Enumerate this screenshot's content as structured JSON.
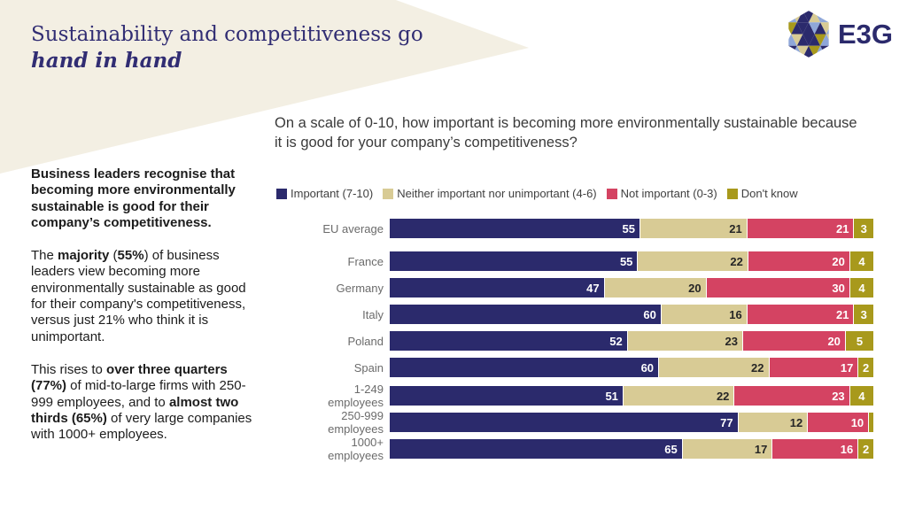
{
  "header": {
    "title_line1": "Sustainability and competitiveness go",
    "title_line2": "hand in hand",
    "logo_text": "E3G",
    "banner_color": "#f3efe3",
    "title_color": "#312d73"
  },
  "sidebar": {
    "paragraphs": [
      {
        "runs": [
          {
            "text": "Business leaders recognise that becoming more environmentally sustainable is good for their company’s competitiveness.",
            "bold": true
          }
        ]
      },
      {
        "runs": [
          {
            "text": "The ",
            "bold": false
          },
          {
            "text": "majority",
            "bold": true
          },
          {
            "text": " (",
            "bold": false
          },
          {
            "text": "55%",
            "bold": true
          },
          {
            "text": ") of business leaders view becoming more environmentally sustainable as good for their company's competitiveness, versus just 21% who think it is unimportant.",
            "bold": false
          }
        ]
      },
      {
        "runs": [
          {
            "text": "This rises to ",
            "bold": false
          },
          {
            "text": "over three quarters (77%)",
            "bold": true
          },
          {
            "text": " of mid-to-large firms with 250-999 employees, and to ",
            "bold": false
          },
          {
            "text": "almost two thirds (65%)",
            "bold": true
          },
          {
            "text": " of very large companies with 1000+ employees.",
            "bold": false
          }
        ]
      }
    ]
  },
  "chart": {
    "question": "On a scale of 0-10, how important is becoming more environmentally sustainable because it is good for your company’s competitiveness?"
  },
  "chart_data": {
    "type": "bar",
    "variant": "horizontal_stacked",
    "title": "On a scale of 0-10, how important is becoming more environmentally sustainable because it is good for your company’s competitiveness?",
    "categories": [
      "EU average",
      "France",
      "Germany",
      "Italy",
      "Poland",
      "Spain",
      "1-249 employees",
      "250-999 employees",
      "1000+ employees"
    ],
    "series": [
      {
        "name": "Important (7-10)",
        "color": "#2b2a6c",
        "label_color": "#ffffff",
        "values": [
          55,
          55,
          47,
          60,
          52,
          60,
          51,
          77,
          65
        ]
      },
      {
        "name": "Neither important nor unimportant (4-6)",
        "color": "#d8cb95",
        "label_color": "#262626",
        "values": [
          21,
          22,
          20,
          16,
          23,
          22,
          22,
          12,
          17
        ]
      },
      {
        "name": "Not important (0-3)",
        "color": "#d44362",
        "label_color": "#ffffff",
        "values": [
          21,
          20,
          30,
          21,
          20,
          17,
          23,
          10,
          16
        ]
      },
      {
        "name": "Don't know",
        "color": "#a8991c",
        "label_color": "#ffffff",
        "values": [
          3,
          4,
          4,
          3,
          5,
          2,
          4,
          1,
          2
        ]
      }
    ],
    "xlim": [
      0,
      100
    ],
    "grid": false,
    "legend_position": "top",
    "group_gaps": {
      "1": 15,
      "6": 10
    },
    "hide_label_below": 2
  }
}
